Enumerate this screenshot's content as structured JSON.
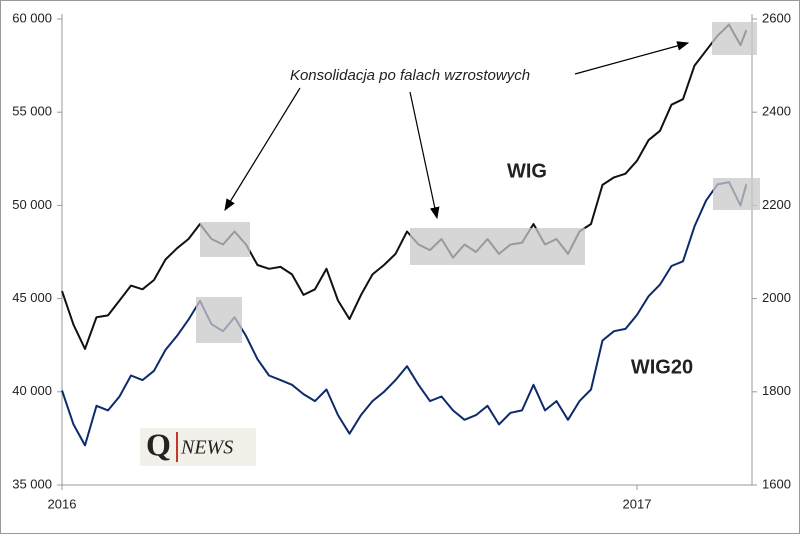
{
  "chart_data": {
    "type": "line",
    "annotation": "Konsolidacja po falach wzrostowych",
    "logo_letter": "Q",
    "logo_text": "NEWS",
    "x": [
      2016.0,
      2016.02,
      2016.04,
      2016.06,
      2016.08,
      2016.1,
      2016.12,
      2016.14,
      2016.16,
      2016.18,
      2016.2,
      2016.22,
      2016.24,
      2016.26,
      2016.28,
      2016.3,
      2016.32,
      2016.34,
      2016.36,
      2016.38,
      2016.4,
      2016.42,
      2016.44,
      2016.46,
      2016.48,
      2016.5,
      2016.52,
      2016.54,
      2016.56,
      2016.58,
      2016.6,
      2016.62,
      2016.64,
      2016.66,
      2016.68,
      2016.7,
      2016.72,
      2016.74,
      2016.76,
      2016.78,
      2016.8,
      2016.82,
      2016.84,
      2016.86,
      2016.88,
      2016.9,
      2016.92,
      2016.94,
      2016.96,
      2016.98,
      2017.0,
      2017.02,
      2017.04,
      2017.06,
      2017.08,
      2017.1,
      2017.12,
      2017.14,
      2017.16,
      2017.18,
      2017.19
    ],
    "xlim": [
      2016,
      2017.2
    ],
    "xticks": [
      2016,
      2017
    ],
    "ylim": [
      35000,
      60000
    ],
    "yticks": [
      {
        "value": 35000,
        "label": "35 000"
      },
      {
        "value": 40000,
        "label": "40 000"
      },
      {
        "value": 45000,
        "label": "45 000"
      },
      {
        "value": 50000,
        "label": "50 000"
      },
      {
        "value": 55000,
        "label": "55 000"
      },
      {
        "value": 60000,
        "label": "60 000"
      }
    ],
    "y2lim": [
      1600,
      2600
    ],
    "y2ticks": [
      1600,
      1800,
      2000,
      2200,
      2400,
      2600
    ],
    "series": [
      {
        "name": "WIG",
        "color": "#111111",
        "values": [
          45400,
          43600,
          42300,
          44000,
          44100,
          44900,
          45700,
          45500,
          46000,
          47100,
          47700,
          48200,
          49000,
          48200,
          47900,
          48600,
          47900,
          46800,
          46600,
          46700,
          46300,
          45200,
          45500,
          46600,
          44900,
          43900,
          45200,
          46300,
          46800,
          47400,
          48600,
          47900,
          47600,
          48200,
          47200,
          47900,
          47500,
          48200,
          47400,
          47900,
          48000,
          49000,
          47900,
          48200,
          47400,
          48600,
          49000,
          51100,
          51500,
          51700,
          52400,
          53500,
          54000,
          55400,
          55700,
          57500,
          58300,
          59100,
          59700,
          58600,
          59400
        ]
      },
      {
        "name": "WIG20",
        "color": "#0d2a6b",
        "axis": "y2",
        "values": [
          1803,
          1730,
          1685,
          1770,
          1760,
          1790,
          1835,
          1825,
          1845,
          1890,
          1920,
          1955,
          1995,
          1945,
          1930,
          1960,
          1920,
          1870,
          1835,
          1825,
          1815,
          1795,
          1780,
          1805,
          1750,
          1710,
          1750,
          1780,
          1800,
          1825,
          1855,
          1815,
          1780,
          1790,
          1760,
          1740,
          1750,
          1770,
          1730,
          1755,
          1760,
          1815,
          1760,
          1780,
          1740,
          1780,
          1805,
          1910,
          1930,
          1935,
          1965,
          2005,
          2030,
          2070,
          2080,
          2155,
          2210,
          2245,
          2250,
          2200,
          2245
        ]
      }
    ]
  }
}
